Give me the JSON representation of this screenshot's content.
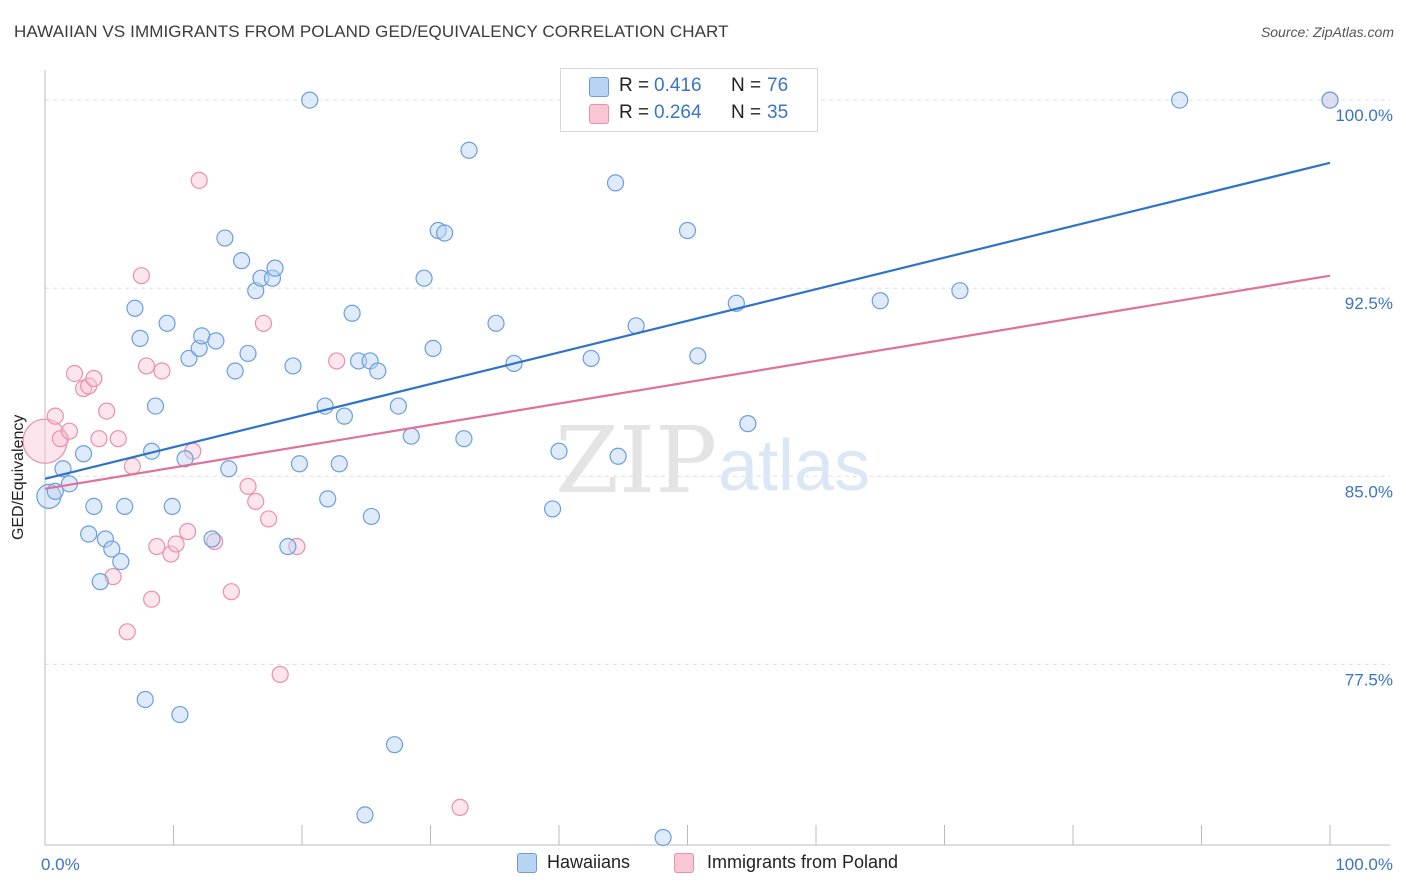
{
  "header": {
    "title": "HAWAIIAN VS IMMIGRANTS FROM POLAND GED/EQUIVALENCY CORRELATION CHART",
    "source": "Source: ZipAtlas.com"
  },
  "watermark": {
    "zip": "ZIP",
    "atlas": "atlas"
  },
  "legend": {
    "r_label": "R =",
    "n_label": "N =",
    "blue": {
      "r": "0.416",
      "n": "76"
    },
    "pink": {
      "r": "0.264",
      "n": "35"
    }
  },
  "colors": {
    "blue_fill": "#b9d3f3",
    "blue_stroke": "#6a9fdd",
    "blue_line": "#2f73c9",
    "pink_fill": "#f8c6d5",
    "pink_stroke": "#ea8fac",
    "pink_line": "#e0719a",
    "tick_label": "#3a74c4",
    "grid": "#dddddd"
  },
  "chart_data": {
    "type": "scatter",
    "title": "HAWAIIAN VS IMMIGRANTS FROM POLAND GED/EQUIVALENCY CORRELATION CHART",
    "xlabel": "",
    "ylabel": "GED/Equivalency",
    "xlim": [
      0,
      100
    ],
    "ylim": [
      70.3,
      101.2
    ],
    "x_tick_labels": [
      "0.0%",
      "100.0%"
    ],
    "y_ticks": [
      77.5,
      85.0,
      92.5,
      100.0
    ],
    "y_tick_labels": [
      "77.5%",
      "85.0%",
      "92.5%",
      "100.0%"
    ],
    "grid": true,
    "legend_position": "top-center",
    "series": [
      {
        "name": "Hawaiians",
        "color": "#6a9fdd",
        "r": 0.416,
        "n": 76,
        "trend": [
          [
            0,
            84.9
          ],
          [
            100,
            97.5
          ]
        ],
        "points": [
          [
            0.3,
            84.2
          ],
          [
            0.8,
            84.4
          ],
          [
            1.4,
            85.3
          ],
          [
            1.9,
            84.7
          ],
          [
            3.0,
            85.9
          ],
          [
            3.4,
            82.7
          ],
          [
            3.8,
            83.8
          ],
          [
            4.3,
            80.8
          ],
          [
            4.7,
            82.5
          ],
          [
            5.2,
            82.1
          ],
          [
            5.9,
            81.6
          ],
          [
            6.2,
            83.8
          ],
          [
            7.0,
            91.7
          ],
          [
            7.4,
            90.5
          ],
          [
            7.8,
            76.1
          ],
          [
            8.3,
            86.0
          ],
          [
            8.6,
            87.8
          ],
          [
            9.5,
            91.1
          ],
          [
            9.9,
            83.8
          ],
          [
            10.5,
            75.5
          ],
          [
            10.9,
            85.7
          ],
          [
            11.2,
            89.7
          ],
          [
            12.0,
            90.1
          ],
          [
            12.2,
            90.6
          ],
          [
            13.0,
            82.5
          ],
          [
            13.3,
            90.4
          ],
          [
            14.0,
            94.5
          ],
          [
            14.3,
            85.3
          ],
          [
            14.8,
            89.2
          ],
          [
            15.3,
            93.6
          ],
          [
            15.8,
            89.9
          ],
          [
            16.4,
            92.4
          ],
          [
            16.8,
            92.9
          ],
          [
            17.7,
            92.9
          ],
          [
            17.9,
            93.3
          ],
          [
            18.9,
            82.2
          ],
          [
            19.3,
            89.4
          ],
          [
            19.8,
            85.5
          ],
          [
            20.6,
            100.0
          ],
          [
            21.8,
            87.8
          ],
          [
            22.0,
            84.1
          ],
          [
            22.9,
            85.5
          ],
          [
            23.3,
            87.4
          ],
          [
            23.9,
            91.5
          ],
          [
            24.4,
            89.6
          ],
          [
            24.9,
            71.5
          ],
          [
            25.3,
            89.6
          ],
          [
            25.4,
            83.4
          ],
          [
            25.9,
            89.2
          ],
          [
            27.2,
            74.3
          ],
          [
            27.5,
            87.8
          ],
          [
            28.5,
            86.6
          ],
          [
            29.5,
            92.9
          ],
          [
            30.2,
            90.1
          ],
          [
            30.6,
            94.8
          ],
          [
            31.1,
            94.7
          ],
          [
            32.6,
            86.5
          ],
          [
            33.0,
            98.0
          ],
          [
            35.1,
            91.1
          ],
          [
            36.5,
            89.5
          ],
          [
            39.5,
            83.7
          ],
          [
            40.0,
            86.0
          ],
          [
            42.5,
            89.7
          ],
          [
            44.4,
            96.7
          ],
          [
            44.6,
            85.8
          ],
          [
            46.0,
            91.0
          ],
          [
            48.1,
            70.6
          ],
          [
            50.0,
            100.0
          ],
          [
            50.0,
            94.8
          ],
          [
            50.8,
            89.8
          ],
          [
            53.8,
            91.9
          ],
          [
            54.7,
            87.1
          ],
          [
            65.0,
            92.0
          ],
          [
            71.2,
            92.4
          ],
          [
            88.3,
            100.0
          ],
          [
            100.0,
            100.0
          ]
        ]
      },
      {
        "name": "Immigrants from Poland",
        "color": "#ea8fac",
        "r": 0.264,
        "n": 35,
        "trend": [
          [
            0,
            84.5
          ],
          [
            100,
            93.0
          ]
        ],
        "points": [
          [
            0.0,
            86.4
          ],
          [
            0.8,
            87.4
          ],
          [
            1.2,
            86.5
          ],
          [
            1.9,
            86.8
          ],
          [
            2.3,
            89.1
          ],
          [
            3.0,
            88.5
          ],
          [
            3.4,
            88.6
          ],
          [
            3.8,
            88.9
          ],
          [
            4.2,
            86.5
          ],
          [
            4.8,
            87.6
          ],
          [
            5.3,
            81.0
          ],
          [
            5.7,
            86.5
          ],
          [
            6.4,
            78.8
          ],
          [
            6.8,
            85.4
          ],
          [
            7.5,
            93.0
          ],
          [
            7.9,
            89.4
          ],
          [
            8.3,
            80.1
          ],
          [
            8.7,
            82.2
          ],
          [
            9.1,
            89.2
          ],
          [
            9.8,
            81.9
          ],
          [
            10.2,
            82.3
          ],
          [
            11.1,
            82.8
          ],
          [
            11.5,
            86.0
          ],
          [
            12.0,
            96.8
          ],
          [
            13.2,
            82.4
          ],
          [
            14.5,
            80.4
          ],
          [
            15.8,
            84.6
          ],
          [
            16.4,
            84.0
          ],
          [
            17.0,
            91.1
          ],
          [
            17.4,
            83.3
          ],
          [
            18.3,
            77.1
          ],
          [
            19.6,
            82.2
          ],
          [
            22.7,
            89.6
          ],
          [
            32.3,
            71.8
          ],
          [
            100.0,
            100.0
          ]
        ]
      }
    ]
  },
  "bottom_legend": {
    "blue_label": "Hawaiians",
    "pink_label": "Immigrants from Poland"
  }
}
